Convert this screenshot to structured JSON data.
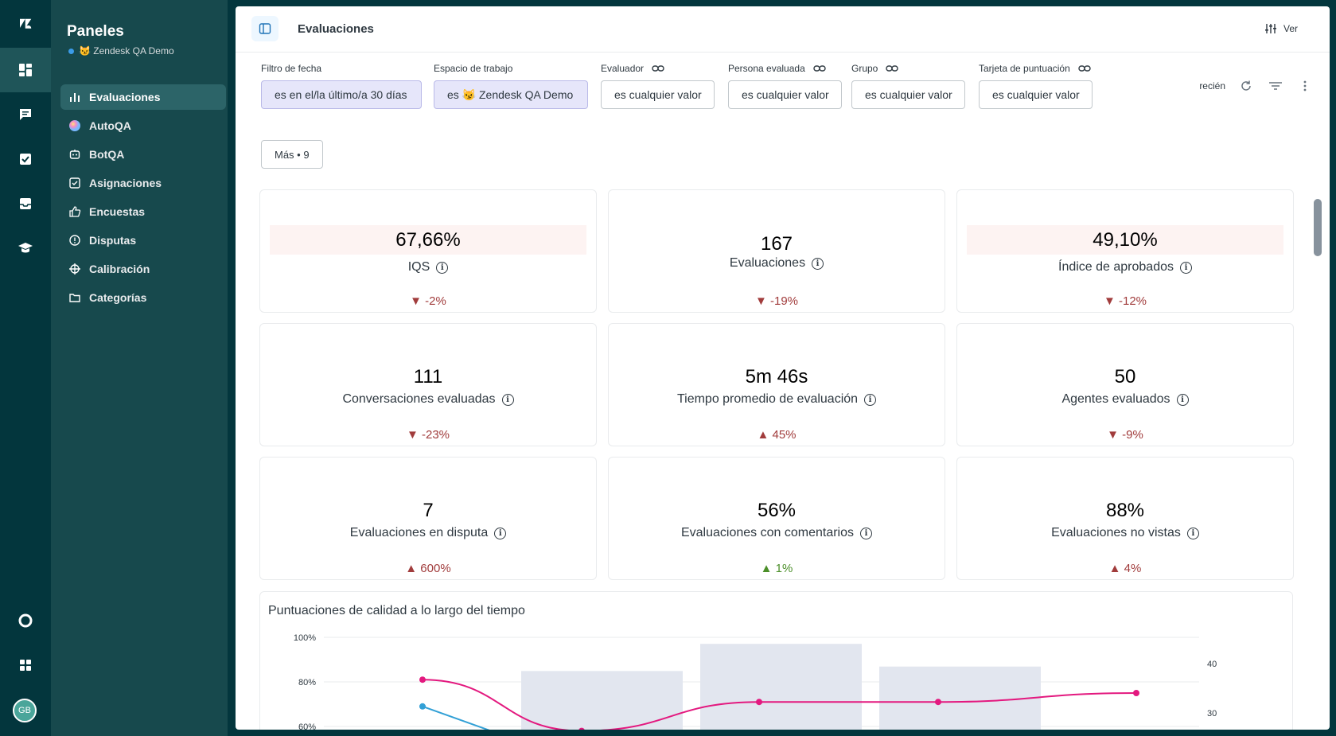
{
  "rail": {
    "items": [
      {
        "name": "zendesk-logo-icon"
      },
      {
        "name": "dashboard-icon"
      },
      {
        "name": "conversations-icon"
      },
      {
        "name": "tasks-icon"
      },
      {
        "name": "inbox-icon"
      },
      {
        "name": "coaching-icon"
      }
    ],
    "bottom": [
      {
        "name": "help-icon"
      },
      {
        "name": "apps-icon"
      }
    ],
    "avatar": "GB"
  },
  "nav": {
    "title": "Paneles",
    "workspace": "😼 Zendesk QA Demo",
    "items": [
      {
        "label": "Evaluaciones",
        "icon": "bar-chart-icon",
        "active": true
      },
      {
        "label": "AutoQA",
        "icon": "autoqa-orb-icon"
      },
      {
        "label": "BotQA",
        "icon": "bot-icon"
      },
      {
        "label": "Asignaciones",
        "icon": "checkbox-icon"
      },
      {
        "label": "Encuestas",
        "icon": "thumbs-up-icon"
      },
      {
        "label": "Disputas",
        "icon": "alert-circle-icon"
      },
      {
        "label": "Calibración",
        "icon": "crosshair-icon"
      },
      {
        "label": "Categorías",
        "icon": "folder-icon"
      }
    ]
  },
  "topbar": {
    "title": "Evaluaciones",
    "view_label": "Ver"
  },
  "filters": [
    {
      "label": "Filtro de fecha",
      "value": "es en el/la último/a 30 días",
      "filled": true,
      "link": false
    },
    {
      "label": "Espacio de trabajo",
      "value": "es 😼 Zendesk QA Demo",
      "filled": true,
      "link": false
    },
    {
      "label": "Evaluador",
      "value": "es cualquier valor",
      "filled": false,
      "link": true
    },
    {
      "label": "Persona evaluada",
      "value": "es cualquier valor",
      "filled": false,
      "link": true
    },
    {
      "label": "Grupo",
      "value": "es cualquier valor",
      "filled": false,
      "link": true
    },
    {
      "label": "Tarjeta de puntuación",
      "value": "es cualquier valor",
      "filled": false,
      "link": true
    }
  ],
  "tools": {
    "refresh_label": "recién"
  },
  "more_button": "Más • 9",
  "cards": [
    {
      "value": "67,66%",
      "label": "IQS",
      "change": "▼ -2%",
      "trend": "bad",
      "highlight": true
    },
    {
      "value": "167",
      "label": "Evaluaciones",
      "change": "▼ -19%",
      "trend": "bad",
      "highlight": false
    },
    {
      "value": "49,10%",
      "label": "Índice de aprobados",
      "change": "▼ -12%",
      "trend": "bad",
      "highlight": true
    },
    {
      "value": "111",
      "label": "Conversaciones evaluadas",
      "change": "▼ -23%",
      "trend": "bad",
      "highlight": false
    },
    {
      "value": "5m 46s",
      "label": "Tiempo promedio de evaluación",
      "change": "▲ 45%",
      "trend": "bad",
      "highlight": false
    },
    {
      "value": "50",
      "label": "Agentes evaluados",
      "change": "▼ -9%",
      "trend": "bad",
      "highlight": false
    },
    {
      "value": "7",
      "label": "Evaluaciones en disputa",
      "change": "▲ 600%",
      "trend": "bad",
      "highlight": false
    },
    {
      "value": "56%",
      "label": "Evaluaciones con comentarios",
      "change": "▲ 1%",
      "trend": "good",
      "highlight": false
    },
    {
      "value": "88%",
      "label": "Evaluaciones no vistas",
      "change": "▲ 4%",
      "trend": "bad",
      "highlight": false
    }
  ],
  "colors": {
    "bad": "#a13c3c",
    "good": "#4b8f29",
    "line_pink": "#e3197f",
    "line_blue": "#32a0d6",
    "bar": "#e2e6ef"
  },
  "chart_data": {
    "type": "bar",
    "title": "Puntuaciones de calidad a lo largo del tiempo",
    "y_left_ticks": [
      "100%",
      "80%",
      "60%"
    ],
    "y_right_ticks": [
      "40",
      "30"
    ],
    "bars": [
      38.5,
      44,
      39.4
    ],
    "line_pink": [
      81,
      58,
      71,
      71,
      75
    ],
    "line_blue": [
      69,
      58
    ]
  }
}
